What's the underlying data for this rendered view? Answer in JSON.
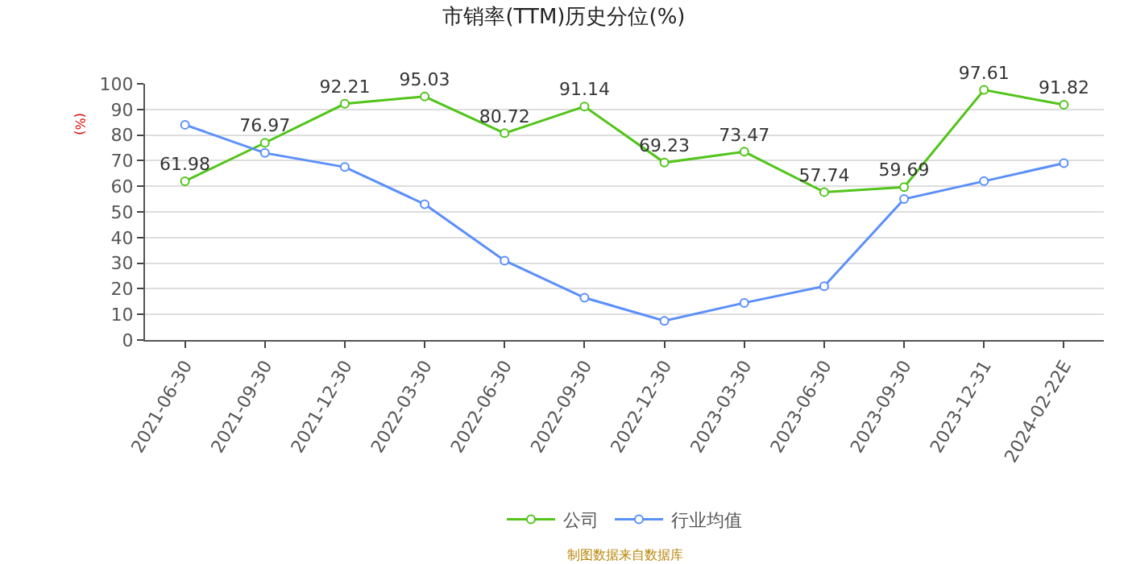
{
  "chart_data": {
    "type": "line",
    "title": "市销率(TTM)历史分位(%)",
    "ylabel": "(%)",
    "categories": [
      "2021-06-30",
      "2021-09-30",
      "2021-12-30",
      "2022-03-30",
      "2022-06-30",
      "2022-09-30",
      "2022-12-30",
      "2023-03-30",
      "2023-06-30",
      "2023-09-30",
      "2023-12-31",
      "2024-02-22E"
    ],
    "series": [
      {
        "name": "公司",
        "color": "#52c41a",
        "values": [
          61.98,
          76.97,
          92.21,
          95.03,
          80.72,
          91.14,
          69.23,
          73.47,
          57.74,
          59.69,
          97.61,
          91.82
        ],
        "value_labels": [
          "61.98",
          "76.97",
          "92.21",
          "95.03",
          "80.72",
          "91.14",
          "69.23",
          "73.47",
          "57.74",
          "59.69",
          "97.61",
          "91.82"
        ]
      },
      {
        "name": "行业均值",
        "color": "#5b8ff9",
        "values": [
          84,
          73,
          67.5,
          53,
          31,
          16.5,
          7.5,
          14.5,
          21,
          55,
          62,
          69
        ]
      }
    ],
    "ylim": [
      0,
      100
    ],
    "yticks": [
      0,
      10,
      20,
      30,
      40,
      50,
      60,
      70,
      80,
      90,
      100
    ],
    "grid": "y",
    "legend": "bottom",
    "marker": "circle",
    "line_style": "solid",
    "annotations": [
      "制图数据来自数据库"
    ]
  }
}
